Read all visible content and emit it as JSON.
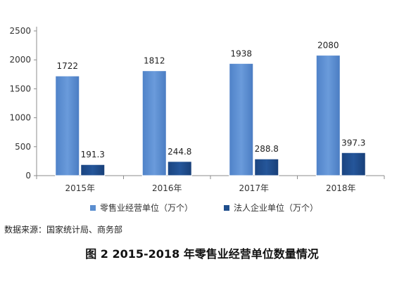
{
  "chart_data": {
    "type": "bar",
    "title": "",
    "xlabel": "",
    "ylabel": "",
    "categories": [
      "2015年",
      "2016年",
      "2017年",
      "2018年"
    ],
    "ylim": [
      0,
      2500
    ],
    "yticks": [
      0,
      500,
      1000,
      1500,
      2000,
      2500
    ],
    "grid": false,
    "legend_position": "bottom",
    "series": [
      {
        "name": "零售业经营单位（万个）",
        "color": "#5b8ed0",
        "values": [
          1722,
          1812,
          1938,
          2080
        ],
        "labels": [
          "1722",
          "1812",
          "1938",
          "2080"
        ]
      },
      {
        "name": "法人企业单位（万个）",
        "color": "#1f4e8c",
        "values": [
          191.3,
          244.8,
          288.8,
          397.3
        ],
        "labels": [
          "191.3",
          "244.8",
          "288.8",
          "397.3"
        ]
      }
    ]
  },
  "source_note": "数据来源：国家统计局、商务部",
  "figure_caption": "图 2 2015-2018 年零售业经营单位数量情况"
}
